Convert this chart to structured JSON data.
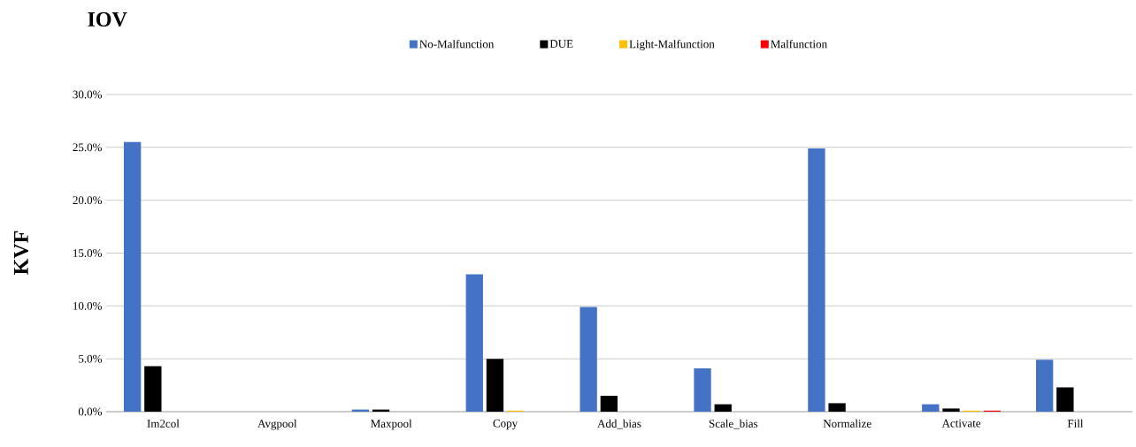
{
  "chart_data": {
    "type": "bar",
    "title": "IOV",
    "ylabel": "KVF",
    "categories": [
      "Im2col",
      "Avgpool",
      "Maxpool",
      "Copy",
      "Add_bias",
      "Scale_bias",
      "Normalize",
      "Activate",
      "Fill"
    ],
    "series": [
      {
        "name": "No-Malfunction",
        "color": "#4472c4",
        "values": [
          25.5,
          0,
          0.2,
          13.0,
          9.9,
          4.1,
          24.9,
          0.7,
          4.9
        ]
      },
      {
        "name": "DUE",
        "color": "#000000",
        "values": [
          4.3,
          null,
          0.2,
          5.0,
          1.5,
          0.7,
          0.8,
          0.3,
          2.3
        ]
      },
      {
        "name": "Light-Malfunction",
        "color": "#ffc000",
        "values": [
          0,
          0,
          0,
          0.1,
          0,
          0,
          0,
          0.1,
          0
        ]
      },
      {
        "name": "Malfunction",
        "color": "#ff0000",
        "values": [
          0,
          0,
          0,
          0,
          0,
          0,
          0,
          0.1,
          0
        ]
      }
    ],
    "ylim": [
      0,
      30
    ],
    "yticks": [
      {
        "value": 0,
        "label": "0.0%"
      },
      {
        "value": 5,
        "label": "5.0%"
      },
      {
        "value": 10,
        "label": "10.0%"
      },
      {
        "value": 15,
        "label": "15.0%"
      },
      {
        "value": 20,
        "label": "20.0%"
      },
      {
        "value": 25,
        "label": "25.0%"
      },
      {
        "value": 30,
        "label": "30.0%"
      }
    ],
    "grid": "y",
    "legend": "top"
  }
}
